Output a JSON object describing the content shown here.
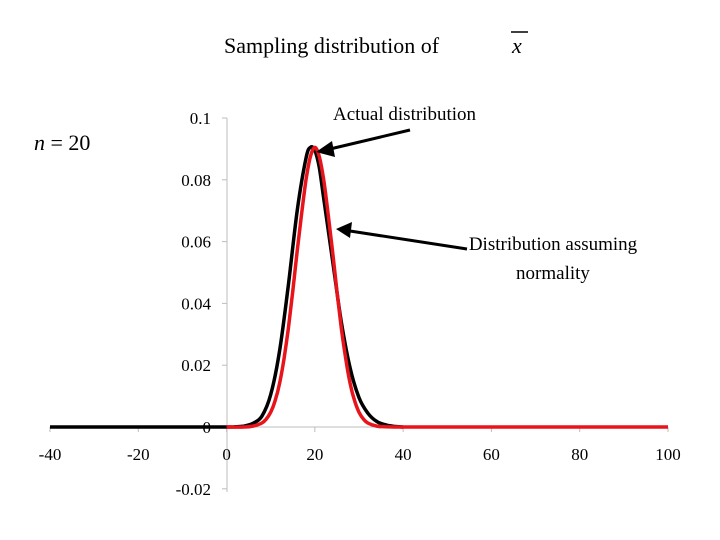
{
  "slide": {
    "title_prefix": "Sampling distribution of",
    "title_symbol": "x",
    "n_label_var": "n",
    "n_label_rest": " = 20"
  },
  "annotations": {
    "actual": "Actual distribution",
    "normal_line1": "Distribution assuming",
    "normal_line2": "normality"
  },
  "chart_data": {
    "type": "line",
    "title": "Sampling distribution of x",
    "xlabel": "",
    "ylabel": "",
    "xlim": [
      -40,
      100
    ],
    "ylim": [
      -0.02,
      0.1
    ],
    "x_ticks": [
      "-40",
      "-20",
      "0",
      "20",
      "40",
      "60",
      "80",
      "100"
    ],
    "x_tick_values": [
      -40,
      -20,
      0,
      20,
      40,
      60,
      80,
      100
    ],
    "y_ticks": [
      "0.1",
      "0.08",
      "0.06",
      "0.04",
      "0.02",
      "0",
      "-0.02"
    ],
    "y_tick_values": [
      0.1,
      0.08,
      0.06,
      0.04,
      0.02,
      0,
      -0.02
    ],
    "grid": false,
    "colors": {
      "actual": "#000000",
      "normal": "#e8141c",
      "arrow": "#000000"
    },
    "series": [
      {
        "name": "Actual distribution",
        "color": "#000000",
        "x": [
          -40,
          -20,
          0,
          2,
          4,
          6,
          8,
          10,
          12,
          14,
          16,
          18,
          19,
          20,
          21,
          22,
          24,
          26,
          28,
          30,
          32,
          34,
          36,
          38,
          40
        ],
        "y": [
          0,
          0,
          0,
          0.0001,
          0.0003,
          0.0012,
          0.0035,
          0.0105,
          0.0245,
          0.046,
          0.07,
          0.087,
          0.0905,
          0.0895,
          0.084,
          0.074,
          0.054,
          0.034,
          0.019,
          0.0095,
          0.0045,
          0.0018,
          0.0007,
          0.0002,
          0
        ]
      },
      {
        "name": "Distribution assuming normality",
        "color": "#e8141c",
        "x": [
          0,
          4,
          6,
          8,
          9,
          10,
          11,
          12,
          13,
          14,
          15,
          16,
          17,
          18,
          19,
          20,
          21,
          22,
          23,
          24,
          25,
          26,
          27,
          28,
          29,
          30,
          31,
          32,
          34,
          36,
          38,
          40,
          60,
          80,
          100
        ],
        "y": [
          0,
          0,
          0.0003,
          0.0013,
          0.0026,
          0.0048,
          0.0085,
          0.014,
          0.022,
          0.032,
          0.044,
          0.057,
          0.069,
          0.08,
          0.0875,
          0.0905,
          0.0875,
          0.08,
          0.069,
          0.057,
          0.044,
          0.032,
          0.022,
          0.014,
          0.0085,
          0.0048,
          0.0026,
          0.0013,
          0.0003,
          0.0001,
          0,
          0,
          0,
          0,
          0
        ]
      }
    ]
  }
}
